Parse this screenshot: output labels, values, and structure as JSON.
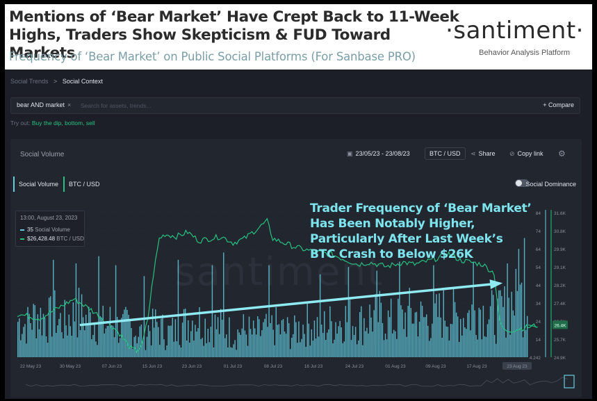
{
  "header": {
    "headline_line1": "Mentions of ‘Bear Market’ Have Crept Back to 11-Week",
    "headline_line2": "Highs, Traders Show Skepticism & FUD Toward Markets",
    "subheadline": "Frequency of ‘Bear Market’ on Public Social Platforms (For Sanbase PRO)",
    "logo": "·santiment·",
    "logo_sub": "Behavior Analysis Platform"
  },
  "breadcrumb": {
    "parent": "Social Trends",
    "separator": ">",
    "current": "Social Context"
  },
  "search": {
    "chip": "bear AND market",
    "chip_close": "×",
    "placeholder": "Search for assets, trends...",
    "compare_label": "+ Compare"
  },
  "tryout": {
    "label": "Try out:",
    "suggestions": "Buy the dip, bottom, sell"
  },
  "panel": {
    "title": "Social Volume",
    "date_range": "23/05/23 - 23/08/23",
    "pair": "BTC / USD",
    "share": "Share",
    "copy_link": "Copy link",
    "settings_icon": "gear-icon",
    "calendar_icon": "calendar-icon",
    "share_icon": "share-icon",
    "link_icon": "link-icon"
  },
  "legend": {
    "social_volume": "Social Volume",
    "btc_usd": "BTC / USD",
    "dominance": "Social Dominance"
  },
  "tooltip": {
    "date": "13:00, August 23, 2023",
    "sv_value": "35",
    "sv_label": "Social Volume",
    "btc_value": "$26,428.48",
    "btc_label": "BTC / USD"
  },
  "annotation": {
    "line1": "Trader Frequency of ‘Bear Market’",
    "line2": "Has Been Notably Higher,",
    "line3": "Particularly After Last Week’s",
    "line4": "BTC Crash to Below $26K"
  },
  "watermark": "santiment",
  "colors": {
    "social_volume": "#68cde0",
    "btc": "#26c281",
    "annotation": "#7de4ee",
    "bg": "#22262f"
  },
  "chart_data": {
    "type": "bar",
    "x_range": [
      "2023-05-22",
      "2023-08-23"
    ],
    "x_tick_labels": [
      "22 May 23",
      "30 May 23",
      "07 Jun 23",
      "15 Jun 23",
      "23 Jun 23",
      "01 Jul 23",
      "08 Jul 23",
      "16 Jul 23",
      "24 Jul 23",
      "01 Aug 23",
      "09 Aug 23",
      "17 Aug 23",
      "23 Aug 23"
    ],
    "y_left": {
      "ticks": [
        "84",
        "74",
        "64",
        "54",
        "44",
        "34",
        "24",
        "14",
        "4.242"
      ],
      "range": [
        4.242,
        84
      ]
    },
    "y_right": {
      "ticks": [
        "31.6K",
        "30.8K",
        "29.9K",
        "29.1K",
        "28.2K",
        "27.4K",
        "26.5K",
        "25.7K",
        "24.9K"
      ],
      "range": [
        24900,
        31600
      ],
      "current_badge": "26.4K"
    },
    "series": [
      {
        "name": "Social Volume",
        "type": "bar",
        "daily_baseline": [
          30,
          28,
          32,
          35,
          33,
          31,
          34,
          30,
          29,
          33,
          36,
          34,
          31,
          30,
          28,
          27,
          29,
          26,
          25,
          27,
          24,
          22,
          23,
          25,
          27,
          24,
          22,
          23,
          26,
          28,
          31,
          33,
          30,
          28,
          27,
          26,
          25,
          23,
          22,
          24,
          23,
          21,
          22,
          24,
          25,
          26,
          24,
          23,
          22,
          25,
          27,
          28,
          26,
          25,
          27,
          28,
          30,
          32,
          31,
          30,
          29,
          31,
          33,
          34,
          32,
          30,
          29,
          31,
          33,
          35,
          34,
          32,
          31,
          33,
          35,
          37,
          34,
          32,
          33,
          35,
          38,
          40,
          36,
          34,
          33,
          37,
          41,
          44,
          46,
          42,
          38
        ],
        "spikes": [
          [
            6,
            58
          ],
          [
            10,
            56
          ],
          [
            14,
            60
          ],
          [
            17,
            55
          ],
          [
            22,
            49
          ],
          [
            28,
            58
          ],
          [
            34,
            55
          ],
          [
            36,
            62
          ],
          [
            44,
            55
          ],
          [
            53,
            50
          ],
          [
            58,
            54
          ],
          [
            63,
            52
          ],
          [
            67,
            57
          ],
          [
            73,
            55
          ],
          [
            80,
            57
          ],
          [
            86,
            56
          ],
          [
            88,
            64
          ],
          [
            89,
            70
          ]
        ]
      },
      {
        "name": "BTC / USD",
        "type": "line",
        "points": [
          [
            0,
            26900
          ],
          [
            4,
            26700
          ],
          [
            8,
            27300
          ],
          [
            10,
            27600
          ],
          [
            13,
            27100
          ],
          [
            16,
            26500
          ],
          [
            18,
            26000
          ],
          [
            20,
            25300
          ],
          [
            21,
            25200
          ],
          [
            22,
            25500
          ],
          [
            23,
            26700
          ],
          [
            24,
            28800
          ],
          [
            25,
            30400
          ],
          [
            26,
            30600
          ],
          [
            28,
            30500
          ],
          [
            30,
            30700
          ],
          [
            32,
            30300
          ],
          [
            34,
            30400
          ],
          [
            36,
            30500
          ],
          [
            38,
            30200
          ],
          [
            40,
            30400
          ],
          [
            42,
            30800
          ],
          [
            44,
            31200
          ],
          [
            45,
            30400
          ],
          [
            47,
            30200
          ],
          [
            49,
            30000
          ],
          [
            52,
            29800
          ],
          [
            55,
            29700
          ],
          [
            58,
            29400
          ],
          [
            60,
            29200
          ],
          [
            62,
            29300
          ],
          [
            65,
            29100
          ],
          [
            68,
            29300
          ],
          [
            70,
            29200
          ],
          [
            73,
            29400
          ],
          [
            76,
            29700
          ],
          [
            78,
            29400
          ],
          [
            80,
            29300
          ],
          [
            82,
            29200
          ],
          [
            84,
            28800
          ],
          [
            85,
            26500
          ],
          [
            86,
            26100
          ],
          [
            88,
            26200
          ],
          [
            90,
            26300
          ],
          [
            92,
            26400
          ]
        ]
      }
    ],
    "trend_arrow": {
      "from": [
        11,
        22
      ],
      "to": [
        85,
        45
      ]
    },
    "tooltip_point": {
      "date": "2023-08-23 13:00",
      "social_volume": 35,
      "btc_usd": 26428.48
    }
  }
}
